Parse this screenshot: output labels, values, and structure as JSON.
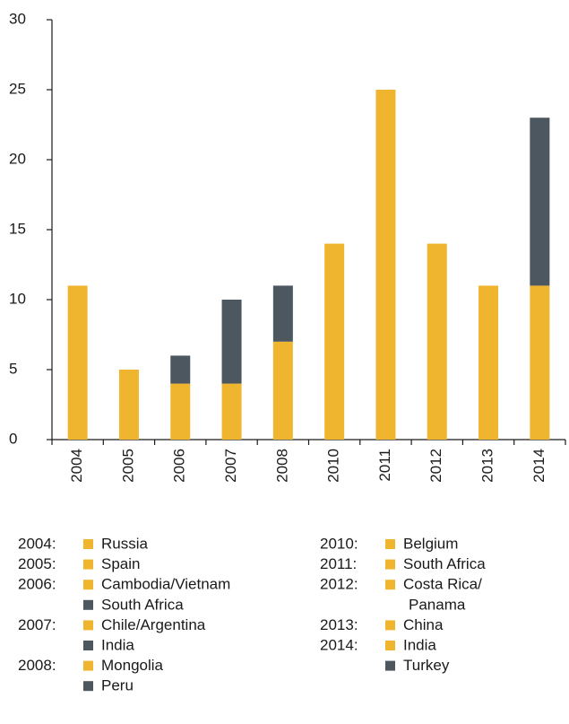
{
  "chart_data": {
    "type": "stacked_bar",
    "categories": [
      "2004",
      "2005",
      "2006",
      "2007",
      "2008",
      "2010",
      "2011",
      "2012",
      "2013",
      "2014"
    ],
    "series": [
      {
        "color": "#f0b52e",
        "values": [
          11,
          5,
          4,
          4,
          7,
          14,
          25,
          14,
          11,
          11
        ]
      },
      {
        "color": "#4d575f",
        "values": [
          null,
          null,
          2,
          6,
          4,
          null,
          null,
          null,
          null,
          12
        ]
      }
    ],
    "ylim": [
      0,
      30
    ],
    "yticks": [
      0,
      5,
      10,
      15,
      20,
      25,
      30
    ],
    "legend": {
      "columns": [
        [
          {
            "year": "2004:",
            "items": [
              {
                "label": "Russia",
                "color": "#f0b52e"
              }
            ]
          },
          {
            "year": "2005:",
            "items": [
              {
                "label": "Spain",
                "color": "#f0b52e"
              }
            ]
          },
          {
            "year": "2006:",
            "items": [
              {
                "label": "Cambodia/Vietnam",
                "color": "#f0b52e"
              },
              {
                "label": "South Africa",
                "color": "#4d575f"
              }
            ]
          },
          {
            "year": "2007:",
            "items": [
              {
                "label": "Chile/Argentina",
                "color": "#f0b52e"
              },
              {
                "label": "India",
                "color": "#4d575f"
              }
            ]
          },
          {
            "year": "2008:",
            "items": [
              {
                "label": "Mongolia",
                "color": "#f0b52e"
              },
              {
                "label": "Peru",
                "color": "#4d575f"
              }
            ]
          }
        ],
        [
          {
            "year": "2010:",
            "items": [
              {
                "label": "Belgium",
                "color": "#f0b52e"
              }
            ]
          },
          {
            "year": "2011:",
            "items": [
              {
                "label": "South Africa",
                "color": "#f0b52e"
              }
            ]
          },
          {
            "year": "2012:",
            "items": [
              {
                "label": [
                  "Costa Rica/",
                  "Panama"
                ],
                "color": "#f0b52e"
              }
            ]
          },
          {
            "year": "2013:",
            "items": [
              {
                "label": "China",
                "color": "#f0b52e"
              }
            ]
          },
          {
            "year": "2014:",
            "items": [
              {
                "label": "India",
                "color": "#f0b52e"
              },
              {
                "label": "Turkey",
                "color": "#4d575f"
              }
            ]
          }
        ]
      ]
    }
  }
}
